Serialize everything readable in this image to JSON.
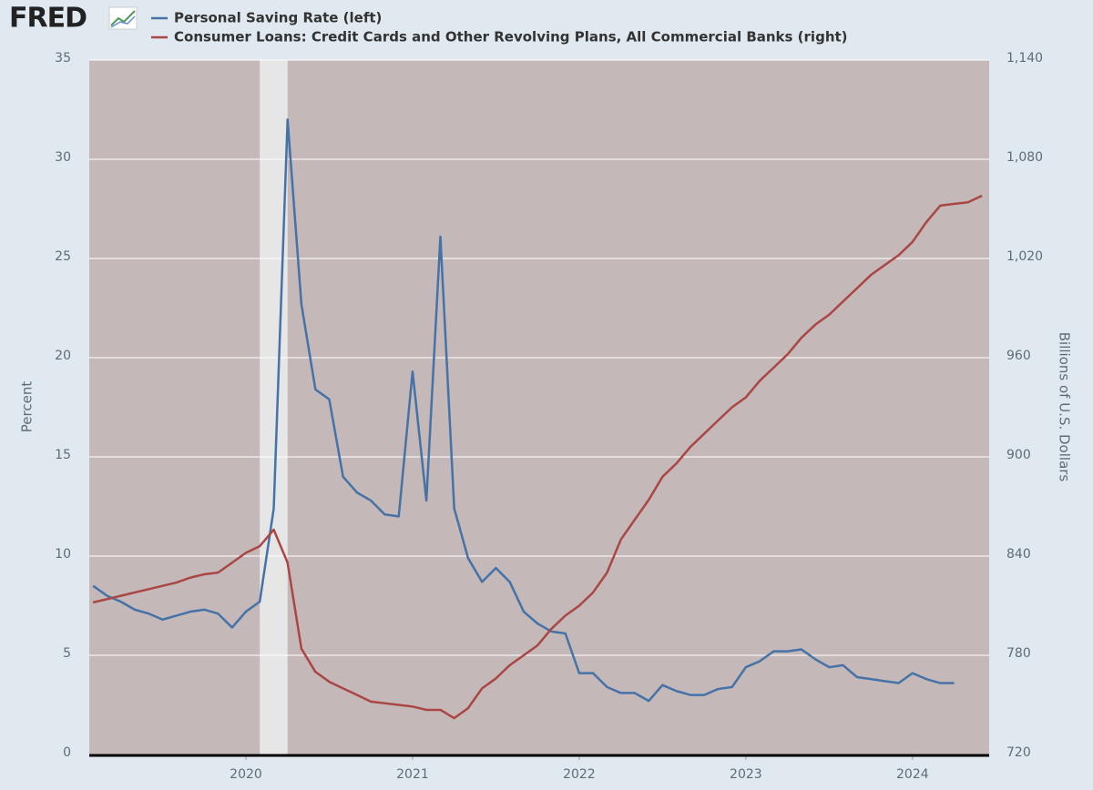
{
  "chart_data": {
    "type": "line",
    "logo": "FRED",
    "x": [
      2019.083,
      2019.167,
      2019.25,
      2019.333,
      2019.417,
      2019.5,
      2019.583,
      2019.667,
      2019.75,
      2019.833,
      2019.917,
      2020.0,
      2020.083,
      2020.167,
      2020.25,
      2020.333,
      2020.417,
      2020.5,
      2020.583,
      2020.667,
      2020.75,
      2020.833,
      2020.917,
      2021.0,
      2021.083,
      2021.167,
      2021.25,
      2021.333,
      2021.417,
      2021.5,
      2021.583,
      2021.667,
      2021.75,
      2021.833,
      2021.917,
      2022.0,
      2022.083,
      2022.167,
      2022.25,
      2022.333,
      2022.417,
      2022.5,
      2022.583,
      2022.667,
      2022.75,
      2022.833,
      2022.917,
      2023.0,
      2023.083,
      2023.167,
      2023.25,
      2023.333,
      2023.417,
      2023.5,
      2023.583,
      2023.667,
      2023.75,
      2023.833,
      2023.917,
      2024.0,
      2024.083,
      2024.167,
      2024.25,
      2024.333,
      2024.417
    ],
    "series": [
      {
        "name": "Personal Saving Rate (left)",
        "color": "#4572a7",
        "axis": "y",
        "values": [
          8.5,
          8.0,
          7.7,
          7.3,
          7.1,
          6.8,
          7.0,
          7.2,
          7.3,
          7.1,
          6.4,
          7.2,
          7.7,
          12.4,
          32.0,
          22.7,
          18.4,
          17.9,
          14.0,
          13.2,
          12.8,
          12.1,
          12.0,
          19.3,
          12.8,
          26.1,
          12.4,
          9.9,
          8.7,
          9.4,
          8.7,
          7.2,
          6.6,
          6.2,
          6.1,
          4.1,
          4.1,
          3.4,
          3.1,
          3.1,
          2.7,
          3.5,
          3.2,
          3.0,
          3.0,
          3.3,
          3.4,
          4.4,
          4.7,
          5.2,
          5.2,
          5.3,
          4.8,
          4.4,
          4.5,
          3.9,
          3.8,
          3.7,
          3.6,
          4.1,
          3.8,
          3.6,
          3.6,
          null,
          null
        ]
      },
      {
        "name": "Consumer Loans: Credit Cards and Other Revolving Plans, All Commercial Banks (right)",
        "color": "#aa4643",
        "axis": "y2",
        "values": [
          812,
          814,
          816,
          818,
          820,
          822,
          824,
          827,
          829,
          830,
          836,
          842,
          846,
          856,
          836,
          784,
          770,
          764,
          760,
          756,
          752,
          751,
          750,
          749,
          747,
          747,
          742,
          748,
          760,
          766,
          774,
          780,
          786,
          796,
          804,
          810,
          818,
          830,
          850,
          862,
          874,
          888,
          896,
          906,
          914,
          922,
          930,
          936,
          946,
          954,
          962,
          972,
          980,
          986,
          994,
          1002,
          1010,
          1016,
          1022,
          1030,
          1042,
          1052,
          1053,
          1054,
          1058
        ]
      }
    ],
    "recessions": [
      [
        2020.083,
        2020.25
      ]
    ],
    "xlim": [
      2019.06,
      2024.46
    ],
    "xticks": [
      2020,
      2021,
      2022,
      2023,
      2024
    ],
    "ylim": [
      0,
      35
    ],
    "yticks": [
      0,
      5,
      10,
      15,
      20,
      25,
      30,
      35
    ],
    "y2lim": [
      720,
      1140
    ],
    "y2ticks": [
      720,
      780,
      840,
      900,
      960,
      {
        "value": 1020,
        "label": "1,020"
      },
      {
        "value": 1080,
        "label": "1,080"
      },
      {
        "value": 1140,
        "label": "1,140"
      }
    ],
    "ylabel": "Percent",
    "y2label": "Billions of U.S. Dollars",
    "grid": true
  }
}
